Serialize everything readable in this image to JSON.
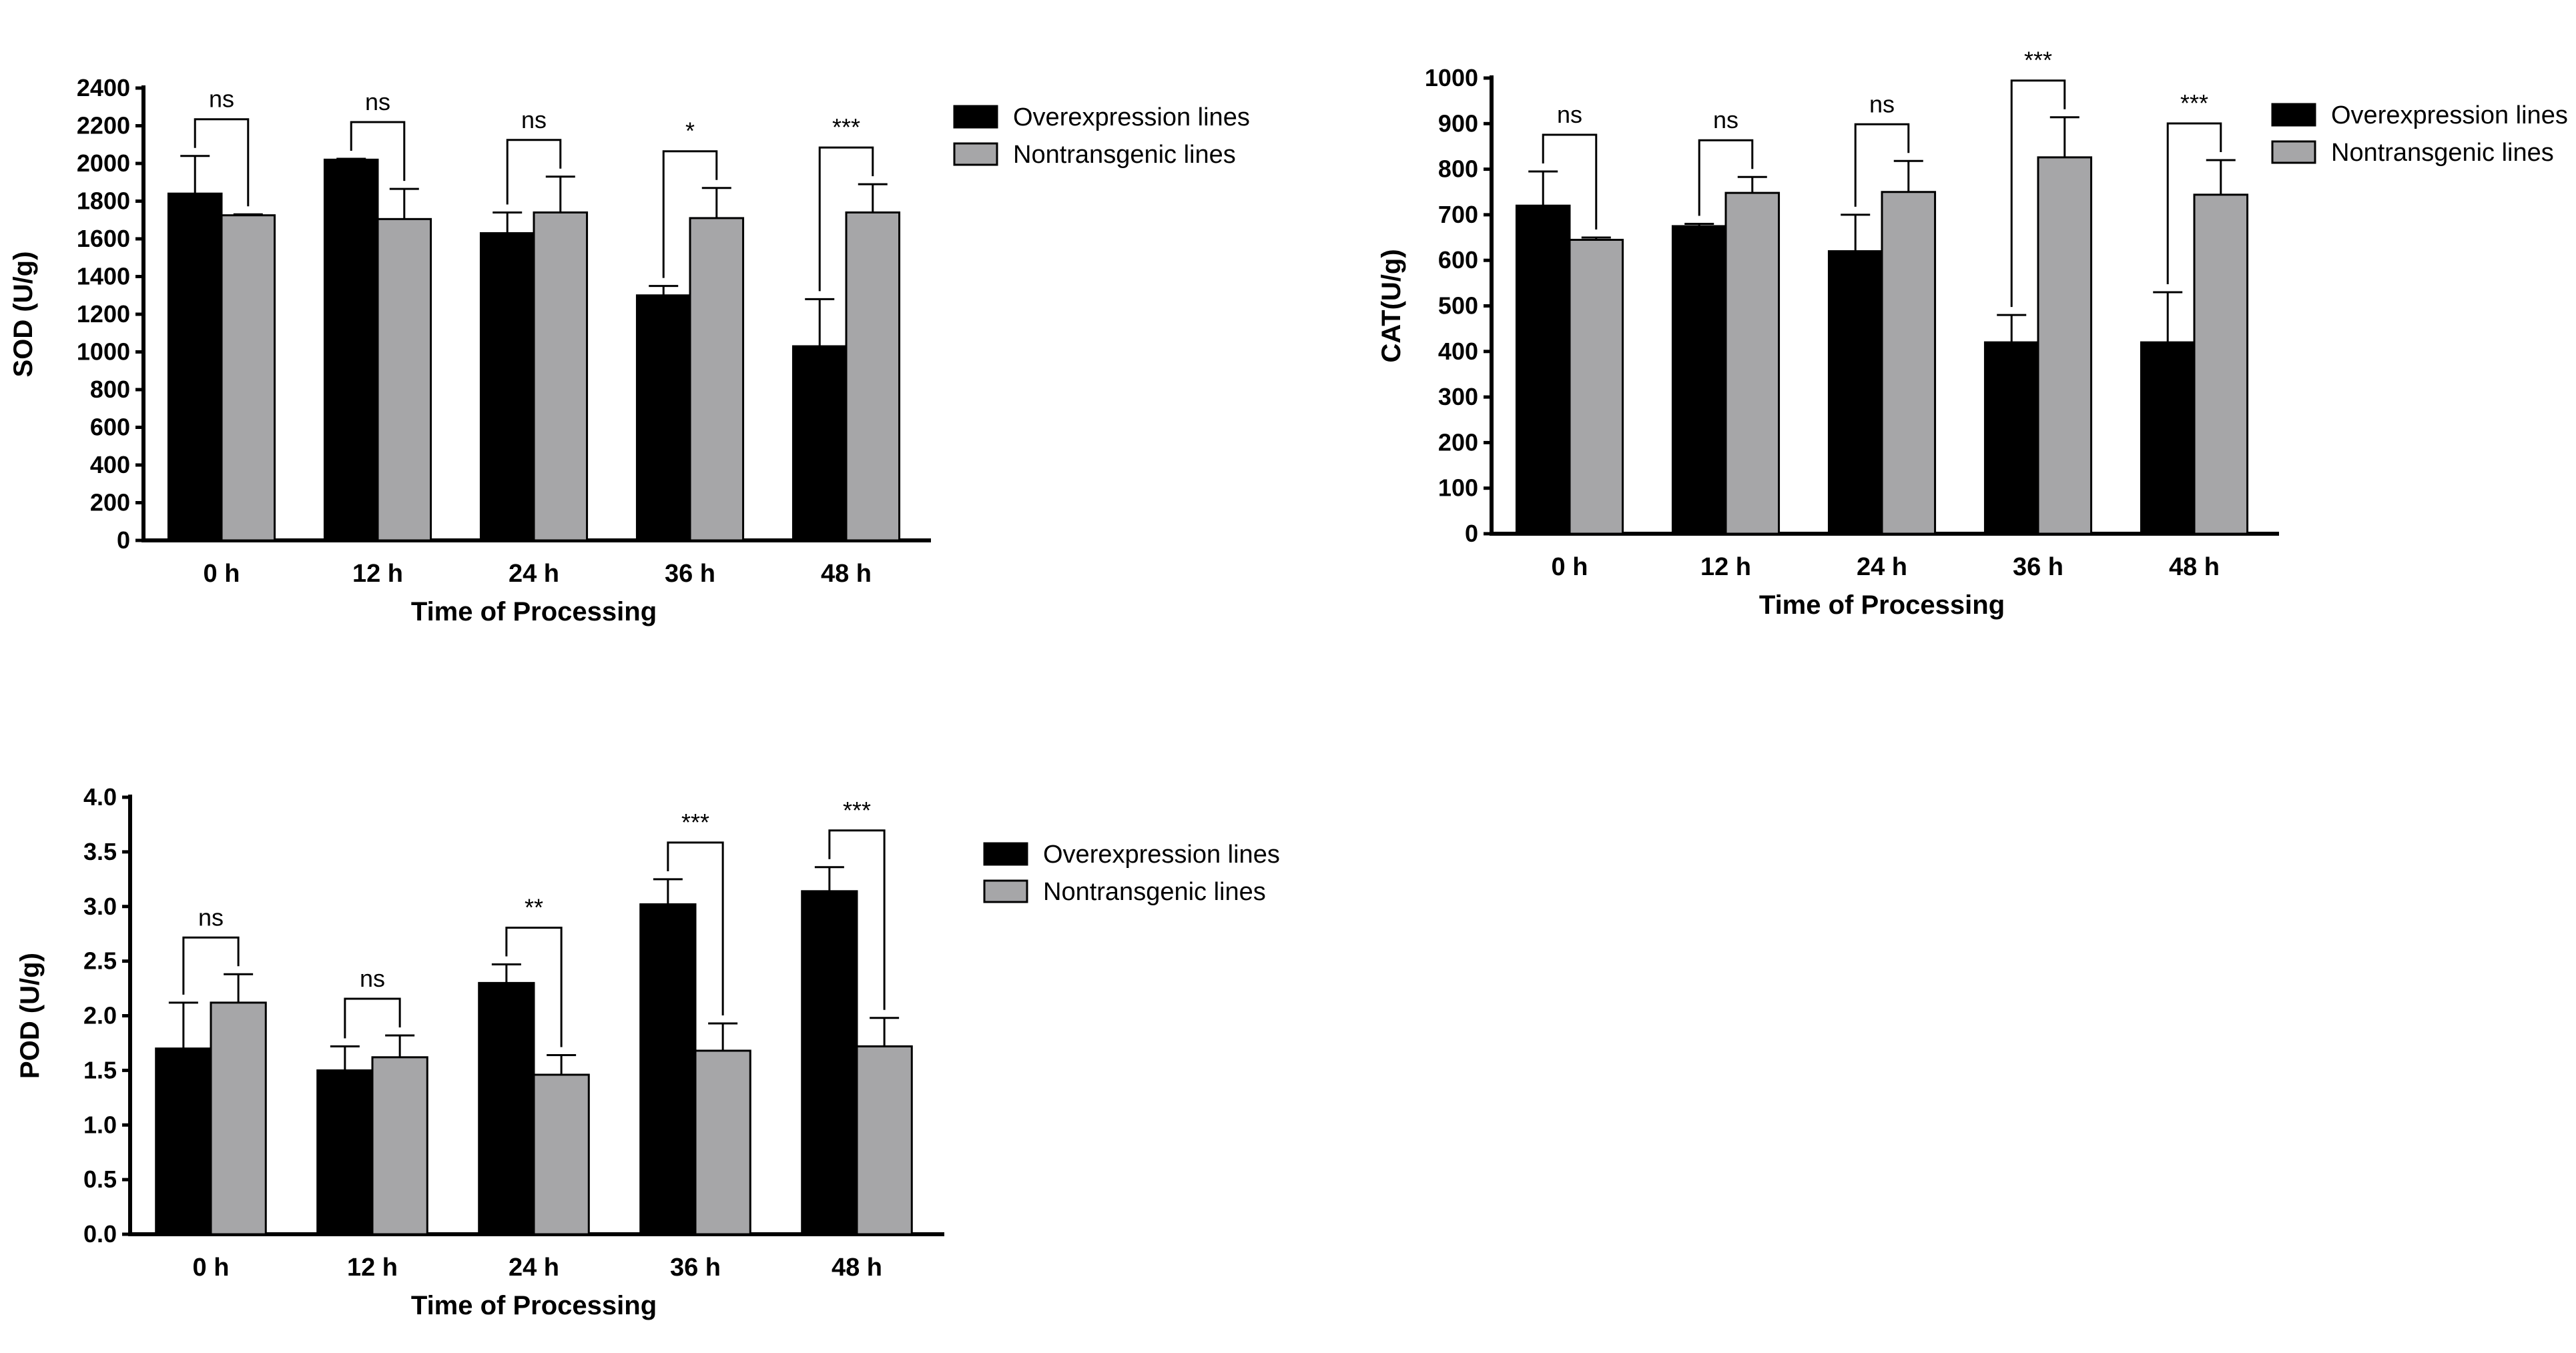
{
  "colors": {
    "overexpression": "#000000",
    "nontransgenic": "#a6a6a8",
    "stroke": "#000000"
  },
  "chart_data": [
    {
      "type": "bar",
      "categories": [
        "0 h",
        "12 h",
        "24 h",
        "36 h",
        "48 h"
      ],
      "xlabel": "Time of Processing",
      "ylabel": "SOD (U/g)",
      "ylim": [
        0,
        2400
      ],
      "yticks": [
        0,
        200,
        400,
        600,
        800,
        1000,
        1200,
        1400,
        1600,
        1800,
        2000,
        2200,
        2400
      ],
      "legend_position": "right",
      "series": [
        {
          "name": "Overexpression lines",
          "color": "overexpression",
          "values": [
            1840,
            2020,
            1630,
            1300,
            1030
          ],
          "errors": [
            200,
            5,
            110,
            50,
            250
          ]
        },
        {
          "name": "Nontransgenic lines",
          "color": "nontransgenic",
          "values": [
            1725,
            1705,
            1740,
            1710,
            1740
          ],
          "errors": [
            5,
            160,
            190,
            160,
            150
          ]
        }
      ],
      "significance": [
        "ns",
        "ns",
        "ns",
        "*",
        "***"
      ]
    },
    {
      "type": "bar",
      "categories": [
        "0 h",
        "12 h",
        "24 h",
        "36 h",
        "48 h"
      ],
      "xlabel": "Time of Processing",
      "ylabel": "CAT(U/g)",
      "ylim": [
        0,
        1000
      ],
      "yticks": [
        0,
        100,
        200,
        300,
        400,
        500,
        600,
        700,
        800,
        900,
        1000
      ],
      "legend_position": "right",
      "series": [
        {
          "name": "Overexpression lines",
          "color": "overexpression",
          "values": [
            720,
            675,
            620,
            420,
            420
          ],
          "errors": [
            75,
            5,
            80,
            60,
            110
          ]
        },
        {
          "name": "Nontransgenic lines",
          "color": "nontransgenic",
          "values": [
            645,
            748,
            750,
            826,
            744
          ],
          "errors": [
            5,
            35,
            68,
            88,
            76
          ]
        }
      ],
      "significance": [
        "ns",
        "ns",
        "ns",
        "***",
        "***"
      ]
    },
    {
      "type": "bar",
      "categories": [
        "0 h",
        "12 h",
        "24 h",
        "36 h",
        "48 h"
      ],
      "xlabel": "Time of Processing",
      "ylabel": "POD (U/g)",
      "ylim": [
        0,
        4.0
      ],
      "yticks": [
        "0.0",
        "0.5",
        "1.0",
        "1.5",
        "2.0",
        "2.5",
        "3.0",
        "3.5",
        "4.0"
      ],
      "legend_position": "right",
      "series": [
        {
          "name": "Overexpression lines",
          "color": "overexpression",
          "values": [
            1.7,
            1.5,
            2.3,
            3.02,
            3.14
          ],
          "errors": [
            0.42,
            0.22,
            0.17,
            0.23,
            0.22
          ]
        },
        {
          "name": "Nontransgenic lines",
          "color": "nontransgenic",
          "values": [
            2.12,
            1.62,
            1.46,
            1.68,
            1.72
          ],
          "errors": [
            0.26,
            0.2,
            0.18,
            0.25,
            0.26
          ]
        }
      ],
      "significance": [
        "ns",
        "ns",
        "**",
        "***",
        "***"
      ]
    }
  ]
}
